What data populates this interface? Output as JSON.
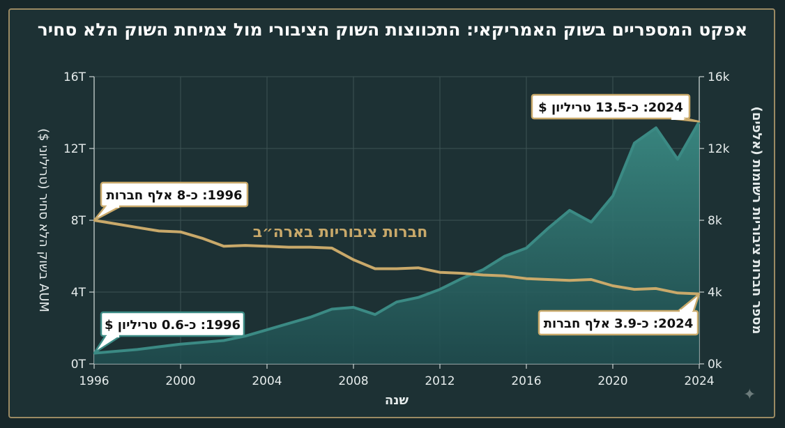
{
  "title": "אפקט המספריים בשוק האמריקאי: התכווצות השוק הציבורי מול צמיחת השוק הלא סחיר",
  "chart_data": {
    "type": "area",
    "title": "אפקט המספריים בשוק האמריקאי: התכווצות השוק הציבורי מול צמיחת השוק הלא סחיר",
    "xlabel": "שנה",
    "ylabel_left": "AUM בשוק הלא סחיר (טריליוני $)",
    "ylabel_right": "מספר חברות ציבוריות רשומות (אלפים)",
    "x_ticks": [
      "1996",
      "2000",
      "2004",
      "2008",
      "2012",
      "2016",
      "2020",
      "2024"
    ],
    "y_left_ticks": [
      "0T",
      "4T",
      "8T",
      "12T",
      "16T"
    ],
    "y_right_ticks": [
      "0k",
      "4k",
      "8k",
      "12k",
      "16k"
    ],
    "ylim_left": [
      0,
      16
    ],
    "ylim_right": [
      0,
      16
    ],
    "xlim": [
      1996,
      2024
    ],
    "grid": true,
    "series": [
      {
        "name": "",
        "axis": "left",
        "style": "area",
        "color": "#3b8a84",
        "x": [
          1996,
          1997,
          1998,
          1999,
          2000,
          2001,
          2002,
          2003,
          2004,
          2005,
          2006,
          2007,
          2008,
          2009,
          2010,
          2011,
          2012,
          2013,
          2014,
          2015,
          2016,
          2017,
          2018,
          2019,
          2020,
          2021,
          2022,
          2023,
          2024
        ],
        "values": [
          0.6,
          0.7,
          0.8,
          0.95,
          1.1,
          1.2,
          1.3,
          1.55,
          1.9,
          2.25,
          2.6,
          3.05,
          3.15,
          2.75,
          3.45,
          3.7,
          4.15,
          4.75,
          5.25,
          6.0,
          6.45,
          7.55,
          8.55,
          7.9,
          9.35,
          12.3,
          13.15,
          11.4,
          13.5
        ]
      },
      {
        "name": "חברות ציבוריות בארה״ב",
        "axis": "right",
        "style": "line",
        "color": "#c9a96a",
        "x": [
          1996,
          1997,
          1998,
          1999,
          2000,
          2001,
          2002,
          2003,
          2004,
          2005,
          2006,
          2007,
          2008,
          2009,
          2010,
          2011,
          2012,
          2013,
          2014,
          2015,
          2016,
          2017,
          2018,
          2019,
          2020,
          2021,
          2022,
          2023,
          2024
        ],
        "values": [
          8.0,
          7.8,
          7.6,
          7.4,
          7.35,
          7.0,
          6.55,
          6.6,
          6.55,
          6.5,
          6.5,
          6.45,
          5.8,
          5.3,
          5.3,
          5.35,
          5.1,
          5.05,
          4.95,
          4.9,
          4.75,
          4.7,
          4.65,
          4.7,
          4.35,
          4.15,
          4.2,
          3.95,
          3.9
        ]
      }
    ],
    "annotations": [
      {
        "text": "1996: כ-8 אלף חברות",
        "x": 1996,
        "y": 8.0,
        "axis": "right",
        "border": "#c9a96a"
      },
      {
        "text": "1996: כ-0.6 טריליון $",
        "x": 1996,
        "y": 0.6,
        "axis": "left",
        "border": "#3b8a84"
      },
      {
        "text": "2024: כ-13.5 טריליון $",
        "x": 2024,
        "y": 13.5,
        "axis": "left",
        "border": "#c9a96a"
      },
      {
        "text": "2024: כ-3.9 אלף חברות",
        "x": 2024,
        "y": 3.9,
        "axis": "right",
        "border": "#c9a96a"
      }
    ]
  }
}
